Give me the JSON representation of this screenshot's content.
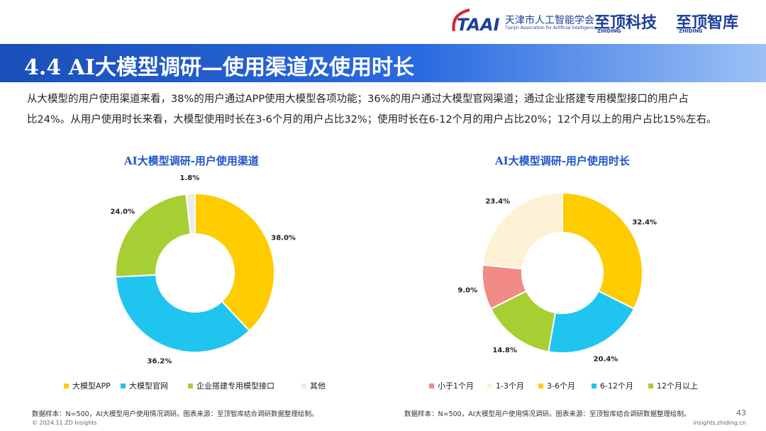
{
  "header": {
    "org": "天津市人工智能学会",
    "org_en": "Tianjin Association for Artificial Intelligence",
    "brand1": "至顶科技",
    "brand1_en": "ZHIDING",
    "brand2": "至顶智库",
    "brand2_en": "ZHIDING"
  },
  "title": "4.4 AI大模型调研—使用渠道及使用时长",
  "summary": [
    "从大模型的用户使用渠道来看，38%的用户通过APP使用大模型各项功能；36%的用户通过大模型官网渠道；通过企业搭建专用模型接口的用户占",
    "比24%。从用户使用时长来看，大模型使用时长在3-6个月的用户占比32%；使用时长在6-12个月的用户占比20%；12个月以上的用户占比15%左右。"
  ],
  "chart_data": [
    {
      "type": "donut",
      "title": "AI大模型调研-用户使用渠道",
      "categories": [
        "大模型APP",
        "大模型官网",
        "企业搭建专用模型接口",
        "其他"
      ],
      "values": [
        38.0,
        36.2,
        24.0,
        1.8
      ],
      "value_labels": [
        "38.0%",
        "36.2%",
        "24.0%",
        "1.8%"
      ],
      "colors": [
        "#ffcc00",
        "#1fc5ef",
        "#a6cf34",
        "#ecebe4"
      ]
    },
    {
      "type": "donut",
      "title": "AI大模型调研-用户使用时长",
      "categories": [
        "小于1个月",
        "1-3个月",
        "3-6个月",
        "6-12个月",
        "12个月以上"
      ],
      "values": [
        9.0,
        23.4,
        32.4,
        20.4,
        14.8
      ],
      "value_labels": [
        "9.0%",
        "23.4%",
        "32.4%",
        "20.4%",
        "14.8%"
      ],
      "colors": [
        "#f28a86",
        "#fdf1d6",
        "#ffcc00",
        "#1fc5ef",
        "#a6cf34"
      ]
    }
  ],
  "sources": [
    "数据样本：N=500，AI大模型用户使用情况调研。图表来源：至顶智库结合调研数据整理绘制。",
    "数据样本：N=500，AI大模型用户使用情况调研。图表来源：至顶智库结合调研数据整理绘制。"
  ],
  "footer": {
    "copyright": "© 2024.11 ZD Insights",
    "site": "insights.zhiding.cn",
    "page": "43"
  }
}
